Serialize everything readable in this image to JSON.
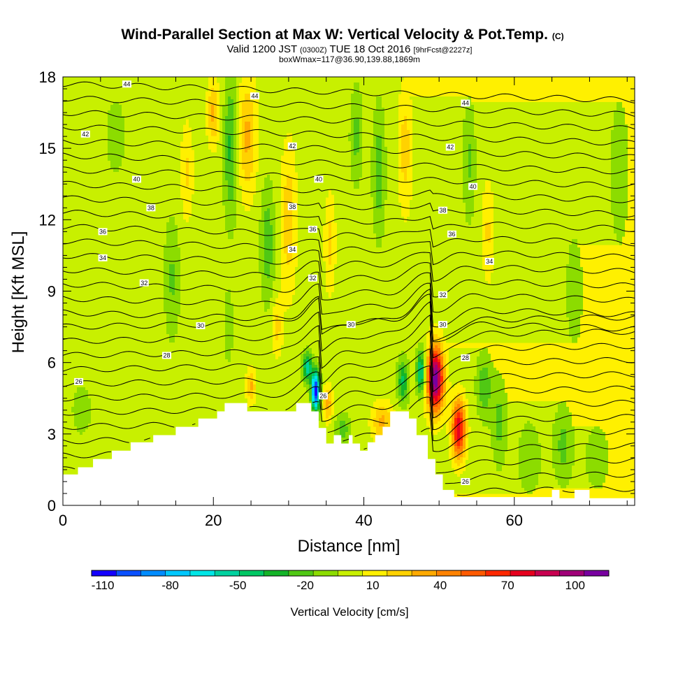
{
  "chart_data": {
    "type": "heatmap",
    "title": "Wind-Parallel Section at Max W: Vertical Velocity & Pot.Temp.",
    "title_mark": "(C)",
    "subtitle": {
      "valid_a": "Valid 1200 JST",
      "valid_b": "(0300Z)",
      "valid_c": "TUE 18 Oct 2016",
      "valid_d": "[9hrFcst@2227z]",
      "line2": "boxWmax=117@36.90,139.88,1869m"
    },
    "xlabel": "Distance [nm]",
    "ylabel": "Height [Kft MSL]",
    "xlim": [
      0,
      76
    ],
    "ylim": [
      0,
      18
    ],
    "x_ticks": [
      "0",
      "20",
      "40",
      "60"
    ],
    "y_ticks": [
      "0",
      "3",
      "6",
      "9",
      "12",
      "15",
      "18"
    ],
    "colorbar": {
      "label": "Vertical Velocity [cm/s]",
      "tick_labels": [
        "-110",
        "-80",
        "-50",
        "-20",
        "10",
        "40",
        "70",
        "100"
      ],
      "min": -115,
      "max": 115,
      "colors": [
        "#1400ff",
        "#0a50ff",
        "#008cff",
        "#00c8ff",
        "#00e6e6",
        "#00d2a0",
        "#00c864",
        "#14b428",
        "#50c814",
        "#8cdc00",
        "#c8f000",
        "#fff000",
        "#ffd200",
        "#ffaa00",
        "#ff8200",
        "#ff5a00",
        "#ff2800",
        "#e6001e",
        "#c80050",
        "#a00078",
        "#7800a0"
      ]
    },
    "terrain": [
      [
        0,
        1.3
      ],
      [
        2,
        1.3
      ],
      [
        2,
        1.6
      ],
      [
        4,
        1.6
      ],
      [
        4,
        1.95
      ],
      [
        6.5,
        1.95
      ],
      [
        6.5,
        2.3
      ],
      [
        9,
        2.3
      ],
      [
        9,
        2.65
      ],
      [
        12,
        2.65
      ],
      [
        12,
        2.95
      ],
      [
        15,
        2.95
      ],
      [
        15,
        3.3
      ],
      [
        18,
        3.3
      ],
      [
        18,
        3.65
      ],
      [
        20,
        3.65
      ],
      [
        20,
        3.65
      ],
      [
        20.5,
        3.65
      ],
      [
        20.5,
        3.95
      ],
      [
        21.5,
        3.95
      ],
      [
        21.5,
        4.3
      ],
      [
        24.5,
        4.3
      ],
      [
        24.5,
        3.95
      ],
      [
        31,
        3.95
      ],
      [
        31,
        4.3
      ],
      [
        33,
        4.3
      ],
      [
        33,
        3.95
      ],
      [
        34,
        3.95
      ],
      [
        34,
        3.25
      ],
      [
        35,
        3.25
      ],
      [
        35,
        2.6
      ],
      [
        36,
        2.6
      ],
      [
        36,
        2.95
      ],
      [
        37,
        2.95
      ],
      [
        37,
        2.6
      ],
      [
        38,
        2.6
      ],
      [
        38,
        2.95
      ],
      [
        38.5,
        2.95
      ],
      [
        38.5,
        2.6
      ],
      [
        39.5,
        2.6
      ],
      [
        39.5,
        2.3
      ],
      [
        40.5,
        2.3
      ],
      [
        40.5,
        2.65
      ],
      [
        41.5,
        2.65
      ],
      [
        41.5,
        2.95
      ],
      [
        42.5,
        2.95
      ],
      [
        42.5,
        3.3
      ],
      [
        43.5,
        3.3
      ],
      [
        43.5,
        3.95
      ],
      [
        46,
        3.95
      ],
      [
        46,
        3.65
      ],
      [
        47,
        3.65
      ],
      [
        47,
        2.95
      ],
      [
        48.5,
        2.95
      ],
      [
        48.5,
        1.95
      ],
      [
        49.5,
        1.95
      ],
      [
        49.5,
        1.3
      ],
      [
        50.5,
        1.3
      ],
      [
        50.5,
        0.65
      ],
      [
        52,
        0.65
      ],
      [
        52,
        0.35
      ],
      [
        65,
        0.35
      ],
      [
        65,
        0.65
      ],
      [
        66,
        0.65
      ],
      [
        66,
        0.3
      ],
      [
        68,
        0.3
      ],
      [
        68,
        0.65
      ],
      [
        70,
        0.65
      ],
      [
        70,
        0.3
      ],
      [
        76,
        0.3
      ]
    ],
    "velocity_features": [
      {
        "x": 49.5,
        "y": 5.3,
        "sx": 1.1,
        "sy": 1.35,
        "amp": 112
      },
      {
        "x": 52.6,
        "y": 3.2,
        "sx": 0.9,
        "sy": 1.2,
        "amp": 82
      },
      {
        "x": 47.6,
        "y": 5.6,
        "sx": 0.6,
        "sy": 0.9,
        "amp": -55
      },
      {
        "x": 33.6,
        "y": 4.8,
        "sx": 0.55,
        "sy": 0.8,
        "amp": -112
      },
      {
        "x": 32.5,
        "y": 5.8,
        "sx": 0.6,
        "sy": 0.6,
        "amp": -55
      },
      {
        "x": 35.2,
        "y": 4.3,
        "sx": 0.6,
        "sy": 0.7,
        "amp": 35
      },
      {
        "x": 42.5,
        "y": 3.5,
        "sx": 1.4,
        "sy": 0.8,
        "amp": 30
      },
      {
        "x": 45.2,
        "y": 5.2,
        "sx": 0.7,
        "sy": 0.9,
        "amp": -40
      },
      {
        "x": 37.2,
        "y": 3.2,
        "sx": 0.9,
        "sy": 0.6,
        "amp": -25
      },
      {
        "x": 24.5,
        "y": 15.5,
        "sx": 1.2,
        "sy": 2.4,
        "amp": 30
      },
      {
        "x": 22.3,
        "y": 15.0,
        "sx": 0.9,
        "sy": 3.0,
        "amp": -30
      },
      {
        "x": 27.2,
        "y": 11.0,
        "sx": 0.9,
        "sy": 2.4,
        "amp": -25
      },
      {
        "x": 30.0,
        "y": 12.0,
        "sx": 1.0,
        "sy": 3.0,
        "amp": 25
      },
      {
        "x": 20.0,
        "y": 16.5,
        "sx": 0.8,
        "sy": 1.3,
        "amp": 30
      },
      {
        "x": 14.5,
        "y": 9.5,
        "sx": 1.0,
        "sy": 2.5,
        "amp": -18
      },
      {
        "x": 42.0,
        "y": 14.0,
        "sx": 0.8,
        "sy": 2.6,
        "amp": -25
      },
      {
        "x": 39.0,
        "y": 15.5,
        "sx": 0.8,
        "sy": 2.0,
        "amp": -20
      },
      {
        "x": 45.5,
        "y": 15.0,
        "sx": 0.9,
        "sy": 2.6,
        "amp": 22
      },
      {
        "x": 54.0,
        "y": 14.5,
        "sx": 0.8,
        "sy": 2.5,
        "amp": -18
      },
      {
        "x": 56.5,
        "y": 11.5,
        "sx": 0.8,
        "sy": 2.0,
        "amp": 18
      },
      {
        "x": 25.0,
        "y": 5.0,
        "sx": 0.6,
        "sy": 0.7,
        "amp": 30
      },
      {
        "x": 22.0,
        "y": 7.5,
        "sx": 0.6,
        "sy": 1.5,
        "amp": -15
      },
      {
        "x": 56.0,
        "y": 5.0,
        "sx": 1.0,
        "sy": 1.3,
        "amp": -25
      },
      {
        "x": 58.0,
        "y": 3.5,
        "sx": 1.0,
        "sy": 1.8,
        "amp": -20
      },
      {
        "x": 62.0,
        "y": 2.0,
        "sx": 1.5,
        "sy": 1.5,
        "amp": -15
      },
      {
        "x": 66.5,
        "y": 2.5,
        "sx": 1.3,
        "sy": 1.6,
        "amp": -20
      },
      {
        "x": 71.0,
        "y": 2.0,
        "sx": 1.5,
        "sy": 1.3,
        "amp": -15
      },
      {
        "x": 74.0,
        "y": 14.0,
        "sx": 1.2,
        "sy": 3.0,
        "amp": -15
      },
      {
        "x": 68.0,
        "y": 9.0,
        "sx": 1.2,
        "sy": 2.5,
        "amp": -12
      },
      {
        "x": 2.5,
        "y": 4.0,
        "sx": 1.2,
        "sy": 1.0,
        "amp": -15
      },
      {
        "x": 7.0,
        "y": 15.5,
        "sx": 1.2,
        "sy": 1.5,
        "amp": -15
      },
      {
        "x": 35.5,
        "y": 11.0,
        "sx": 0.7,
        "sy": 2.0,
        "amp": 20
      },
      {
        "x": 28.5,
        "y": 7.5,
        "sx": 0.7,
        "sy": 1.2,
        "amp": 20
      },
      {
        "x": 16.5,
        "y": 14.0,
        "sx": 0.8,
        "sy": 2.0,
        "amp": 18
      }
    ],
    "contour_labels": [
      {
        "text": "44",
        "x": 8.5,
        "y": 17.7
      },
      {
        "text": "44",
        "x": 25.5,
        "y": 17.2
      },
      {
        "text": "44",
        "x": 53.5,
        "y": 16.9
      },
      {
        "text": "42",
        "x": 3.0,
        "y": 15.6
      },
      {
        "text": "42",
        "x": 30.5,
        "y": 15.1
      },
      {
        "text": "42",
        "x": 51.5,
        "y": 15.05
      },
      {
        "text": "40",
        "x": 9.8,
        "y": 13.7
      },
      {
        "text": "40",
        "x": 34.0,
        "y": 13.7
      },
      {
        "text": "40",
        "x": 54.5,
        "y": 13.4
      },
      {
        "text": "38",
        "x": 11.7,
        "y": 12.5
      },
      {
        "text": "38",
        "x": 30.5,
        "y": 12.55
      },
      {
        "text": "38",
        "x": 50.5,
        "y": 12.4
      },
      {
        "text": "36",
        "x": 5.3,
        "y": 11.5
      },
      {
        "text": "36",
        "x": 33.2,
        "y": 11.6
      },
      {
        "text": "36",
        "x": 51.7,
        "y": 11.4
      },
      {
        "text": "34",
        "x": 5.3,
        "y": 10.4
      },
      {
        "text": "34",
        "x": 30.5,
        "y": 10.75
      },
      {
        "text": "34",
        "x": 56.7,
        "y": 10.25
      },
      {
        "text": "32",
        "x": 10.8,
        "y": 9.35
      },
      {
        "text": "32",
        "x": 33.2,
        "y": 9.55
      },
      {
        "text": "32",
        "x": 50.5,
        "y": 8.85
      },
      {
        "text": "30",
        "x": 18.3,
        "y": 7.55
      },
      {
        "text": "30",
        "x": 38.3,
        "y": 7.6
      },
      {
        "text": "30",
        "x": 50.5,
        "y": 7.6
      },
      {
        "text": "28",
        "x": 13.8,
        "y": 6.3
      },
      {
        "text": "28",
        "x": 53.5,
        "y": 6.2
      },
      {
        "text": "26",
        "x": 2.1,
        "y": 5.2
      },
      {
        "text": "26",
        "x": 34.6,
        "y": 4.6
      },
      {
        "text": "26",
        "x": 53.5,
        "y": 1.0
      }
    ]
  }
}
